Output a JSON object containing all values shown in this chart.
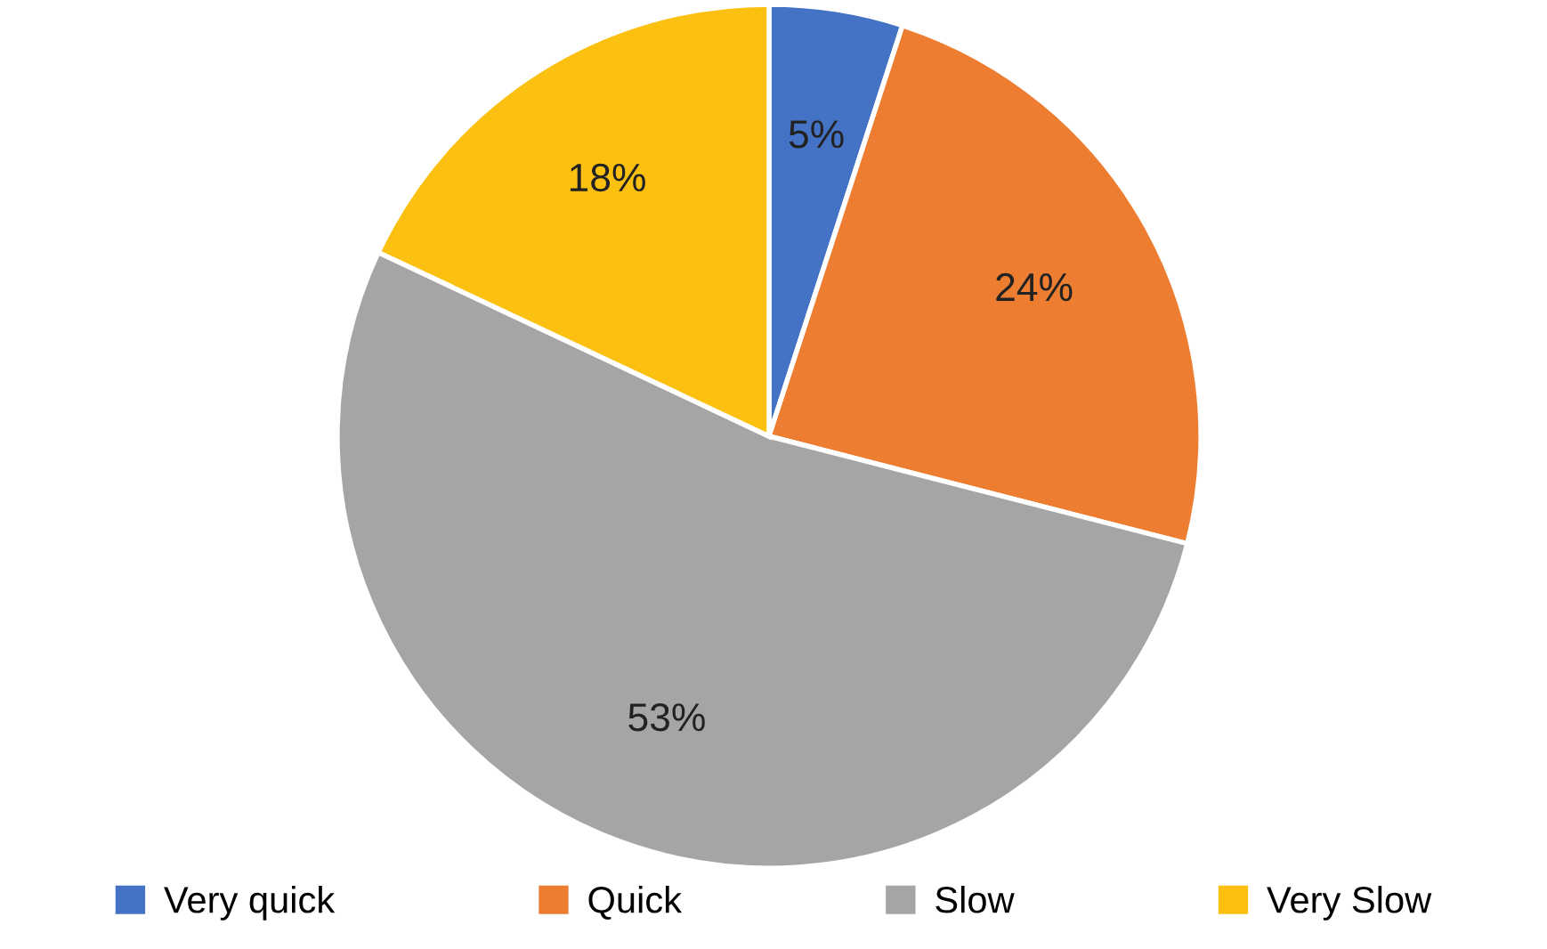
{
  "chart_data": {
    "type": "pie",
    "categories": [
      "Very quick",
      "Quick",
      "Slow",
      "Very Slow"
    ],
    "values": [
      5,
      24,
      53,
      18
    ],
    "colors": [
      "#4472c4",
      "#ed7d31",
      "#a5a5a5",
      "#fbc010"
    ],
    "value_labels": [
      "5%",
      "24%",
      "53%",
      "18%"
    ],
    "legend": "bottom"
  }
}
